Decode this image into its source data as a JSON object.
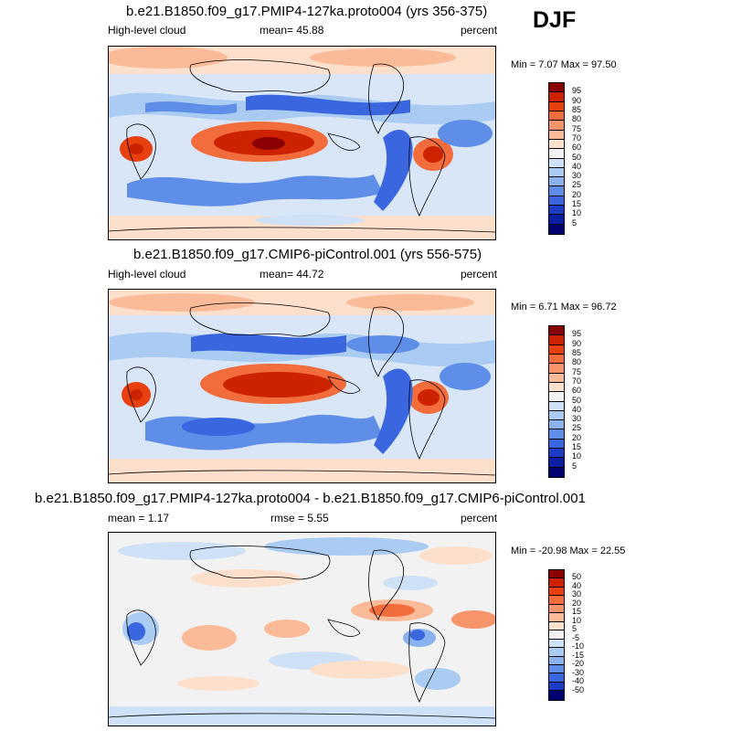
{
  "season": "DJF",
  "unit": "percent",
  "panels": [
    {
      "title": "b.e21.B1850.f09_g17.PMIP4-127ka.proto004 (yrs 356-375)",
      "left_label": "High-level cloud",
      "center_label": "mean=  45.88",
      "right_label": "percent",
      "minmax": "Min =  7.07 Max =  97.50",
      "colorbar_labels": [
        "95",
        "90",
        "85",
        "80",
        "75",
        "70",
        "60",
        "50",
        "40",
        "30",
        "25",
        "20",
        "15",
        "10",
        "5"
      ],
      "colorbar_colors": [
        "#8b0000",
        "#cc2200",
        "#e8400f",
        "#f26c3c",
        "#f8946a",
        "#fbbb99",
        "#fde0cc",
        "#f2f2f2",
        "#cfe1f6",
        "#aacbf2",
        "#8ab2ee",
        "#5f8ee8",
        "#3a66e0",
        "#1c3cc6",
        "#0a1fa6",
        "#000070"
      ]
    },
    {
      "title": "b.e21.B1850.f09_g17.CMIP6-piControl.001 (yrs 556-575)",
      "left_label": "High-level cloud",
      "center_label": "mean=  44.72",
      "right_label": "percent",
      "minmax": "Min =  6.71 Max =  96.72",
      "colorbar_labels": [
        "95",
        "90",
        "85",
        "80",
        "75",
        "70",
        "60",
        "50",
        "40",
        "30",
        "25",
        "20",
        "15",
        "10",
        "5"
      ],
      "colorbar_colors": [
        "#8b0000",
        "#cc2200",
        "#e8400f",
        "#f26c3c",
        "#f8946a",
        "#fbbb99",
        "#fde0cc",
        "#f2f2f2",
        "#cfe1f6",
        "#aacbf2",
        "#8ab2ee",
        "#5f8ee8",
        "#3a66e0",
        "#1c3cc6",
        "#0a1fa6",
        "#000070"
      ]
    },
    {
      "title": "b.e21.B1850.f09_g17.PMIP4-127ka.proto004 - b.e21.B1850.f09_g17.CMIP6-piControl.001",
      "left_label": "mean =   1.17",
      "center_label": "rmse =   5.55",
      "right_label": "percent",
      "minmax": "Min = -20.98 Max =  22.55",
      "colorbar_labels": [
        "50",
        "40",
        "30",
        "20",
        "15",
        "10",
        "5",
        "-5",
        "-10",
        "-15",
        "-20",
        "-30",
        "-40",
        "-50"
      ],
      "colorbar_colors": [
        "#8b0000",
        "#cc2200",
        "#e8400f",
        "#f26c3c",
        "#f8946a",
        "#fbbb99",
        "#fde0cc",
        "#f2f2f2",
        "#cfe1f6",
        "#aacbf2",
        "#8ab2ee",
        "#5f8ee8",
        "#3a66e0",
        "#1c3cc6",
        "#000070"
      ]
    }
  ]
}
